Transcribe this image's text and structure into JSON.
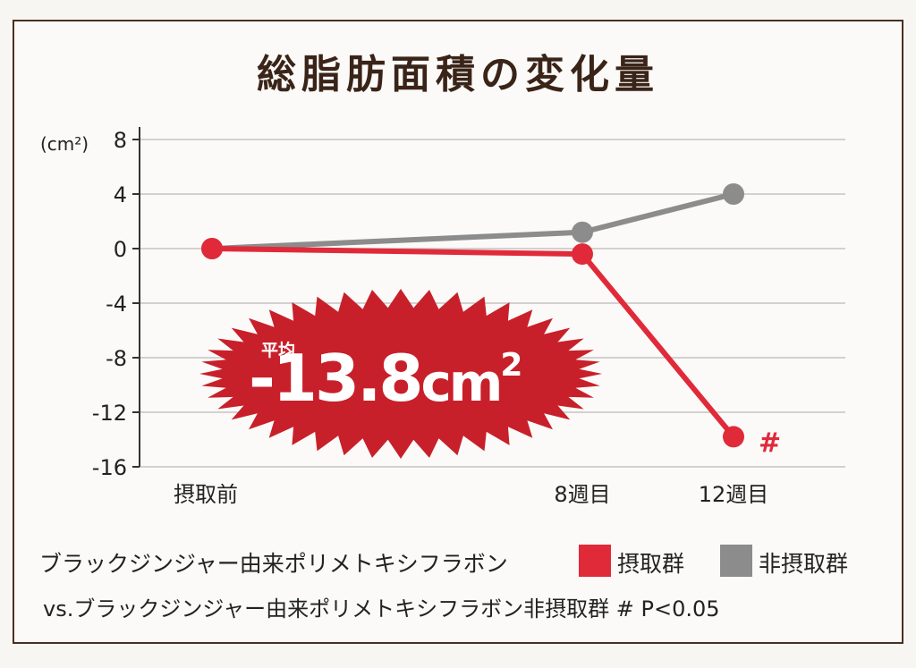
{
  "chart_data": {
    "type": "line",
    "title": "総脂肪面積の変化量",
    "y_unit": "(cm²)",
    "categories": [
      "摂取前",
      "8週目",
      "12週目"
    ],
    "ylim": [
      -16,
      8
    ],
    "yticks": [
      "8",
      "4",
      "0",
      "-4",
      "-8",
      "-12",
      "-16"
    ],
    "grid": true,
    "series": [
      {
        "name": "非摂取群",
        "color": "#8c8c8c",
        "values": [
          0,
          1.2,
          4
        ]
      },
      {
        "name": "摂取群",
        "color": "#e02a3a",
        "values": [
          0,
          -0.4,
          -13.8
        ]
      }
    ],
    "significance_mark": "#",
    "burst": {
      "prefix": "平均",
      "value": "-13.8",
      "unit": "cm",
      "sup": "2"
    },
    "legend": {
      "lead": "ブラックジンジャー由来ポリメトキシフラボン",
      "items": [
        {
          "label": "摂取群",
          "color": "#e02a3a"
        },
        {
          "label": "非摂取群",
          "color": "#8c8c8c"
        }
      ]
    },
    "footnote": "vs.ブラックジンジャー由来ポリメトキシフラボン非摂取群 # P<0.05"
  }
}
